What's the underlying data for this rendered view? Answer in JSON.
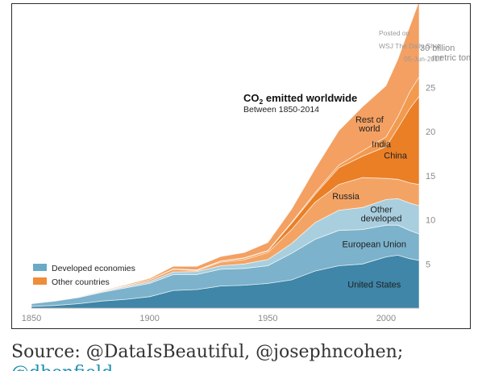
{
  "chart_data": {
    "type": "area",
    "title": "CO",
    "title_sub": "2",
    "title_rest": " emitted worldwide",
    "subtitle": "Between 1850-2014",
    "credit_lines": [
      "Posted on",
      "WSJ  The Daily Shot",
      "05-Jun-2017"
    ],
    "unit_labels": [
      "30 billion",
      "metric tons"
    ],
    "x_ticks": [
      "1850",
      "1900",
      "1950",
      "2000"
    ],
    "y_ticks": [
      "5",
      "10",
      "15",
      "20",
      "25"
    ],
    "xlim": [
      1850,
      2014
    ],
    "ylim": [
      0,
      34
    ],
    "legend_position": "bottom-left",
    "legend": [
      {
        "label": "Developed economies",
        "color": "#6aaac6"
      },
      {
        "label": "Other countries",
        "color": "#ef8d3a"
      }
    ],
    "x": [
      1850,
      1860,
      1870,
      1880,
      1890,
      1900,
      1910,
      1920,
      1930,
      1940,
      1950,
      1960,
      1970,
      1980,
      1990,
      2000,
      2005,
      2010,
      2014
    ],
    "series": [
      {
        "name": "United States",
        "group": "Developed economies",
        "color": "#3f86a8",
        "values": [
          0.2,
          0.3,
          0.5,
          0.8,
          1.0,
          1.3,
          2.0,
          2.1,
          2.5,
          2.6,
          2.8,
          3.2,
          4.2,
          4.8,
          5.0,
          5.8,
          6.0,
          5.6,
          5.4
        ]
      },
      {
        "name": "European Union",
        "group": "Developed economies",
        "color": "#7cb2cb",
        "values": [
          0.3,
          0.5,
          0.7,
          1.0,
          1.3,
          1.5,
          1.8,
          1.7,
          1.9,
          1.9,
          2.0,
          3.0,
          3.6,
          4.0,
          3.9,
          3.6,
          3.4,
          3.2,
          3.0
        ]
      },
      {
        "name": "Other developed",
        "group": "Developed economies",
        "color": "#a9cfdf",
        "values": [
          0.05,
          0.05,
          0.08,
          0.1,
          0.15,
          0.2,
          0.3,
          0.35,
          0.4,
          0.5,
          0.7,
          1.1,
          1.9,
          2.3,
          2.5,
          2.9,
          3.0,
          3.1,
          3.2
        ]
      },
      {
        "name": "Russia",
        "group": "Other countries",
        "color": "#f3a465",
        "values": [
          0.0,
          0.0,
          0.0,
          0.05,
          0.1,
          0.2,
          0.3,
          0.1,
          0.4,
          0.5,
          0.8,
          1.6,
          2.3,
          2.9,
          3.4,
          2.4,
          2.2,
          2.3,
          2.4
        ]
      },
      {
        "name": "China",
        "group": "Other countries",
        "color": "#ea7f26",
        "values": [
          0.0,
          0.0,
          0.0,
          0.0,
          0.0,
          0.0,
          0.02,
          0.05,
          0.1,
          0.15,
          0.15,
          0.7,
          0.9,
          1.9,
          2.4,
          3.6,
          5.8,
          8.4,
          10.0
        ]
      },
      {
        "name": "India",
        "group": "Other countries",
        "color": "#f29a4e",
        "values": [
          0.0,
          0.0,
          0.0,
          0.0,
          0.0,
          0.0,
          0.02,
          0.03,
          0.04,
          0.05,
          0.08,
          0.1,
          0.2,
          0.3,
          0.6,
          1.1,
          1.3,
          1.9,
          2.2
        ]
      },
      {
        "name": "Rest of world",
        "group": "Other countries",
        "color": "#f3a062",
        "values": [
          0.0,
          0.0,
          0.0,
          0.05,
          0.1,
          0.15,
          0.3,
          0.4,
          0.5,
          0.6,
          0.9,
          1.5,
          2.7,
          3.9,
          5.0,
          5.8,
          6.5,
          7.4,
          8.6
        ]
      }
    ],
    "annotations": [
      {
        "series": "United States",
        "lines": [
          "United States"
        ]
      },
      {
        "series": "European Union",
        "lines": [
          "European Union"
        ]
      },
      {
        "series": "Other developed",
        "lines": [
          "Other",
          "developed"
        ]
      },
      {
        "series": "Russia",
        "lines": [
          "Russia"
        ]
      },
      {
        "series": "China",
        "lines": [
          "China"
        ]
      },
      {
        "series": "India",
        "lines": [
          "India"
        ]
      },
      {
        "series": "Rest of world",
        "lines": [
          "Rest of",
          "world"
        ]
      }
    ]
  },
  "caption": {
    "text": "Source: @DataIsBeautiful, @josephncohen;",
    "overflow_text": "@dbenfield"
  }
}
